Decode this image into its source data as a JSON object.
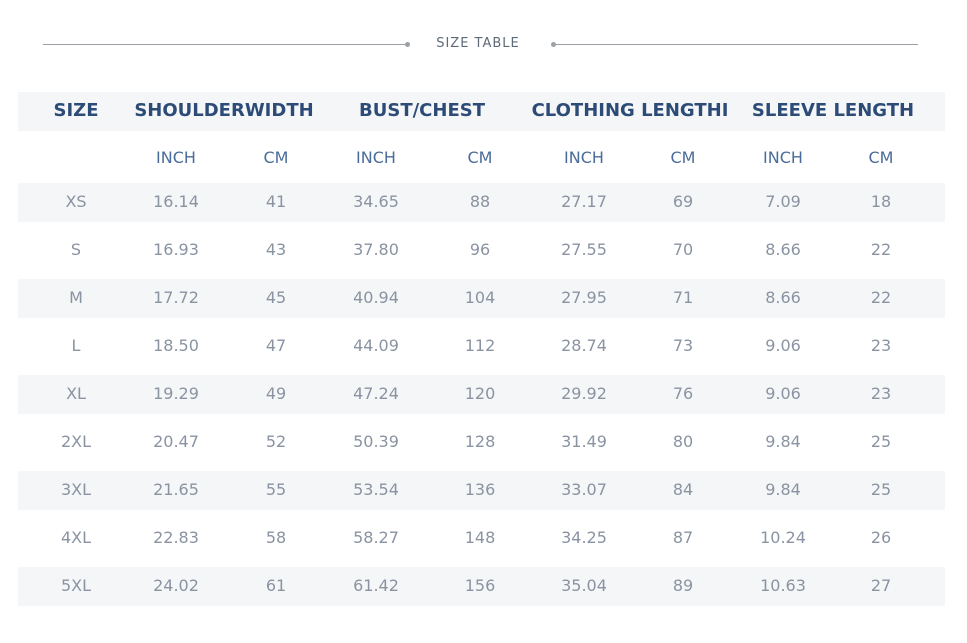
{
  "header": {
    "title": "SIZE TABLE"
  },
  "table": {
    "groups": [
      "SIZE",
      "SHOULDERWIDTH",
      "BUST/CHEST",
      "CLOTHING LENGTHI",
      "SLEEVE LENGTH"
    ],
    "subheaders": [
      "INCH",
      "CM",
      "INCH",
      "CM",
      "INCH",
      "CM",
      "INCH",
      "CM"
    ],
    "rows": [
      [
        "XS",
        "16.14",
        "41",
        "34.65",
        "88",
        "27.17",
        "69",
        "7.09",
        "18"
      ],
      [
        "S",
        "16.93",
        "43",
        "37.80",
        "96",
        "27.55",
        "70",
        "8.66",
        "22"
      ],
      [
        "M",
        "17.72",
        "45",
        "40.94",
        "104",
        "27.95",
        "71",
        "8.66",
        "22"
      ],
      [
        "L",
        "18.50",
        "47",
        "44.09",
        "112",
        "28.74",
        "73",
        "9.06",
        "23"
      ],
      [
        "XL",
        "19.29",
        "49",
        "47.24",
        "120",
        "29.92",
        "76",
        "9.06",
        "23"
      ],
      [
        "2XL",
        "20.47",
        "52",
        "50.39",
        "128",
        "31.49",
        "80",
        "9.84",
        "25"
      ],
      [
        "3XL",
        "21.65",
        "55",
        "53.54",
        "136",
        "33.07",
        "84",
        "9.84",
        "25"
      ],
      [
        "4XL",
        "22.83",
        "58",
        "58.27",
        "148",
        "34.25",
        "87",
        "10.24",
        "26"
      ],
      [
        "5XL",
        "24.02",
        "61",
        "61.42",
        "156",
        "35.04",
        "89",
        "10.63",
        "27"
      ]
    ]
  }
}
